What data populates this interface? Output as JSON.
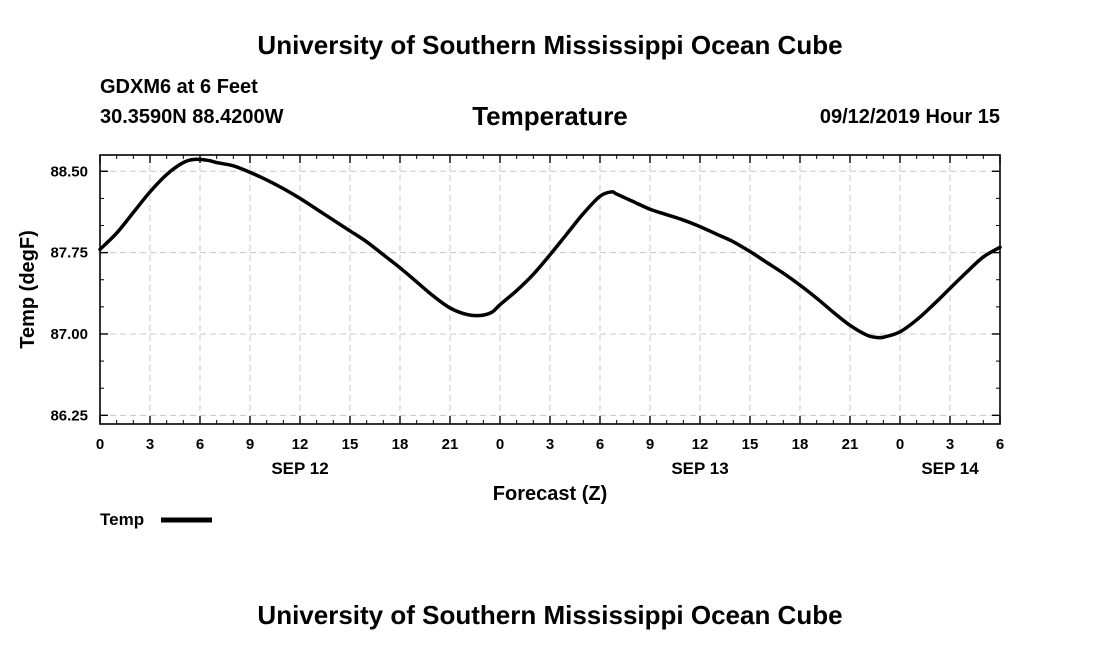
{
  "header": {
    "title": "University of Southern Mississippi Ocean Cube"
  },
  "station": {
    "name": "GDXM6 at 6 Feet",
    "coords": "30.3590N 88.4200W"
  },
  "run_time": "09/12/2019 Hour 15",
  "footer": {
    "title": "University of Southern Mississippi Ocean Cube"
  },
  "chart_data": {
    "type": "line",
    "title": "Temperature",
    "xlabel": "Forecast (Z)",
    "ylabel": "Temp (degF)",
    "x_unit": "hours since SEP 12 00Z",
    "xlim": [
      0,
      54
    ],
    "ylim": [
      86.17,
      88.65
    ],
    "grid": true,
    "x_ticks": [
      {
        "x": 0,
        "label": "0"
      },
      {
        "x": 3,
        "label": "3"
      },
      {
        "x": 6,
        "label": "6"
      },
      {
        "x": 9,
        "label": "9"
      },
      {
        "x": 12,
        "label": "12"
      },
      {
        "x": 15,
        "label": "15"
      },
      {
        "x": 18,
        "label": "18"
      },
      {
        "x": 21,
        "label": "21"
      },
      {
        "x": 24,
        "label": "0"
      },
      {
        "x": 27,
        "label": "3"
      },
      {
        "x": 30,
        "label": "6"
      },
      {
        "x": 33,
        "label": "9"
      },
      {
        "x": 36,
        "label": "12"
      },
      {
        "x": 39,
        "label": "15"
      },
      {
        "x": 42,
        "label": "18"
      },
      {
        "x": 45,
        "label": "21"
      },
      {
        "x": 48,
        "label": "0"
      },
      {
        "x": 51,
        "label": "3"
      },
      {
        "x": 54,
        "label": "6"
      }
    ],
    "date_labels": [
      {
        "x": 12,
        "label": "SEP 12"
      },
      {
        "x": 36,
        "label": "SEP 13"
      },
      {
        "x": 51,
        "label": "SEP 14"
      }
    ],
    "y_ticks": [
      {
        "y": 86.25,
        "label": "86.25"
      },
      {
        "y": 87.0,
        "label": "87.00"
      },
      {
        "y": 87.75,
        "label": "87.75"
      },
      {
        "y": 88.5,
        "label": "88.50"
      }
    ],
    "legend": {
      "position": "bottom-left",
      "entries": [
        {
          "name": "Temp"
        }
      ]
    },
    "series": [
      {
        "name": "Temp",
        "color": "#000000",
        "x": [
          0,
          1,
          2,
          3,
          4,
          5,
          5.7,
          6.5,
          7,
          8,
          9,
          10,
          11,
          12,
          13,
          14,
          15,
          16,
          17,
          18,
          19,
          20,
          21,
          22,
          22.8,
          23.5,
          24,
          25,
          26,
          27,
          28,
          29,
          30,
          30.7,
          31,
          32,
          33,
          34,
          35,
          36,
          37,
          38,
          39,
          40,
          41,
          42,
          43,
          44,
          45,
          46,
          46.5,
          47,
          48,
          49,
          50,
          51,
          52,
          53,
          54
        ],
        "values": [
          87.78,
          87.93,
          88.12,
          88.31,
          88.47,
          88.58,
          88.61,
          88.6,
          88.58,
          88.55,
          88.49,
          88.42,
          88.34,
          88.25,
          88.15,
          88.05,
          87.95,
          87.85,
          87.73,
          87.61,
          87.48,
          87.35,
          87.24,
          87.18,
          87.17,
          87.2,
          87.27,
          87.4,
          87.55,
          87.73,
          87.92,
          88.11,
          88.27,
          88.31,
          88.29,
          88.22,
          88.15,
          88.1,
          88.05,
          87.99,
          87.92,
          87.85,
          87.76,
          87.66,
          87.56,
          87.45,
          87.33,
          87.2,
          87.08,
          86.99,
          86.97,
          86.97,
          87.02,
          87.13,
          87.27,
          87.42,
          87.57,
          87.71,
          87.8
        ]
      }
    ]
  }
}
